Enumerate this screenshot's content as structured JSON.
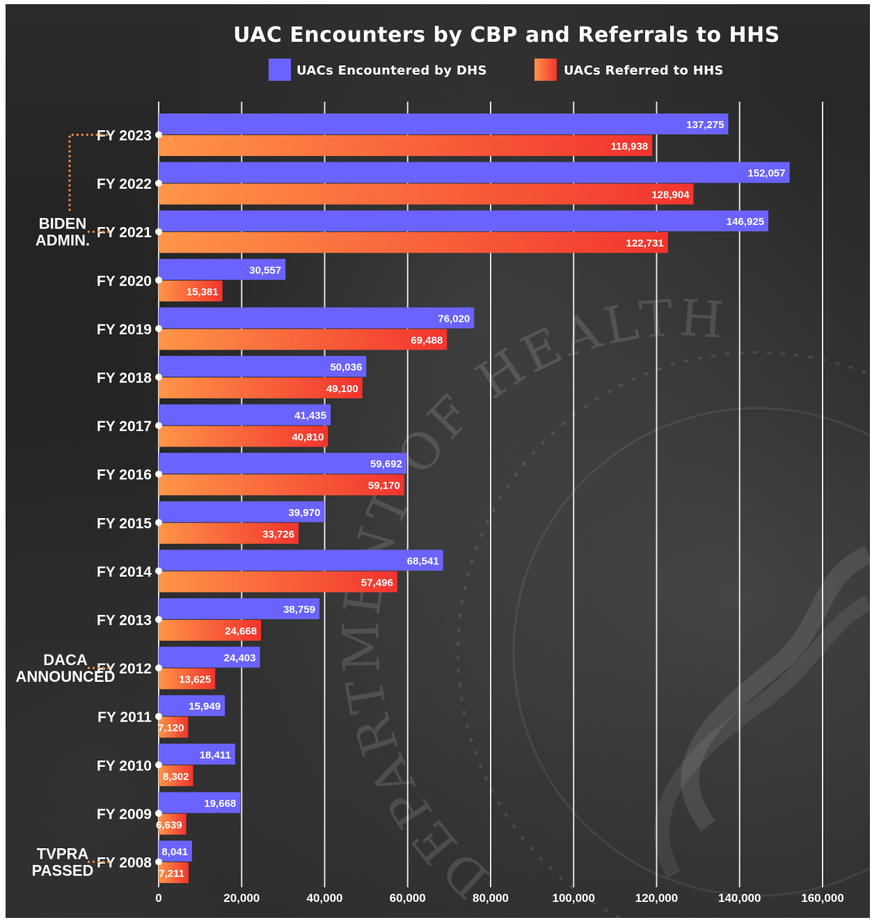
{
  "chart_data": {
    "type": "bar",
    "orientation": "horizontal",
    "title": "UAC Encounters by CBP and Referrals to HHS",
    "categories": [
      "FY 2023",
      "FY 2022",
      "FY 2021",
      "FY 2020",
      "FY 2019",
      "FY 2018",
      "FY 2017",
      "FY 2016",
      "FY 2015",
      "FY 2014",
      "FY 2013",
      "FY 2012",
      "FY 2011",
      "FY 2010",
      "FY 2009",
      "FY 2008"
    ],
    "series": [
      {
        "name": "UACs Encountered by DHS",
        "color": "#6b63ff",
        "values": [
          137275,
          152057,
          146925,
          30557,
          76020,
          50036,
          41435,
          59692,
          39970,
          68541,
          38759,
          24403,
          15949,
          18411,
          19668,
          8041
        ],
        "labels": [
          "137,275",
          "152,057",
          "146,925",
          "30,557",
          "76,020",
          "50,036",
          "41,435",
          "59,692",
          "39,970",
          "68,541",
          "38,759",
          "24,403",
          "15,949",
          "18,411",
          "19,668",
          "8,041"
        ]
      },
      {
        "name": "UACs Referred to HHS",
        "color": "#ff6a3d",
        "values": [
          118938,
          128904,
          122731,
          15381,
          69488,
          49100,
          40810,
          59170,
          33726,
          57496,
          24668,
          13625,
          7120,
          8302,
          6639,
          7211
        ],
        "labels": [
          "118,938",
          "128,904",
          "122,731",
          "15,381",
          "69,488",
          "49,100",
          "40,810",
          "59,170",
          "33,726",
          "57,496",
          "24,668",
          "13,625",
          "7,120",
          "8,302",
          "6,639",
          "7,211"
        ]
      }
    ],
    "xlim": [
      0,
      160000
    ],
    "xticks": [
      0,
      20000,
      40000,
      60000,
      80000,
      100000,
      120000,
      140000,
      160000
    ],
    "xtick_labels": [
      "0",
      "20,000",
      "40,000",
      "60,000",
      "80,000",
      "100,000",
      "120,000",
      "140,000",
      "160,000"
    ],
    "grid": true,
    "legend_position": "top-center",
    "annotations": [
      {
        "text_lines": [
          "BIDEN",
          "ADMIN."
        ],
        "from": "FY 2021",
        "to": "FY 2023"
      },
      {
        "text_lines": [
          "DACA",
          "ANNOUNCED"
        ],
        "at": "FY 2012"
      },
      {
        "text_lines": [
          "TVPRA",
          "PASSED"
        ],
        "at": "FY 2008"
      }
    ]
  },
  "background": {
    "seal_text": "DEPARTMENT OF HEALTH",
    "seal_color": "rgba(255,255,255,0.13)"
  }
}
